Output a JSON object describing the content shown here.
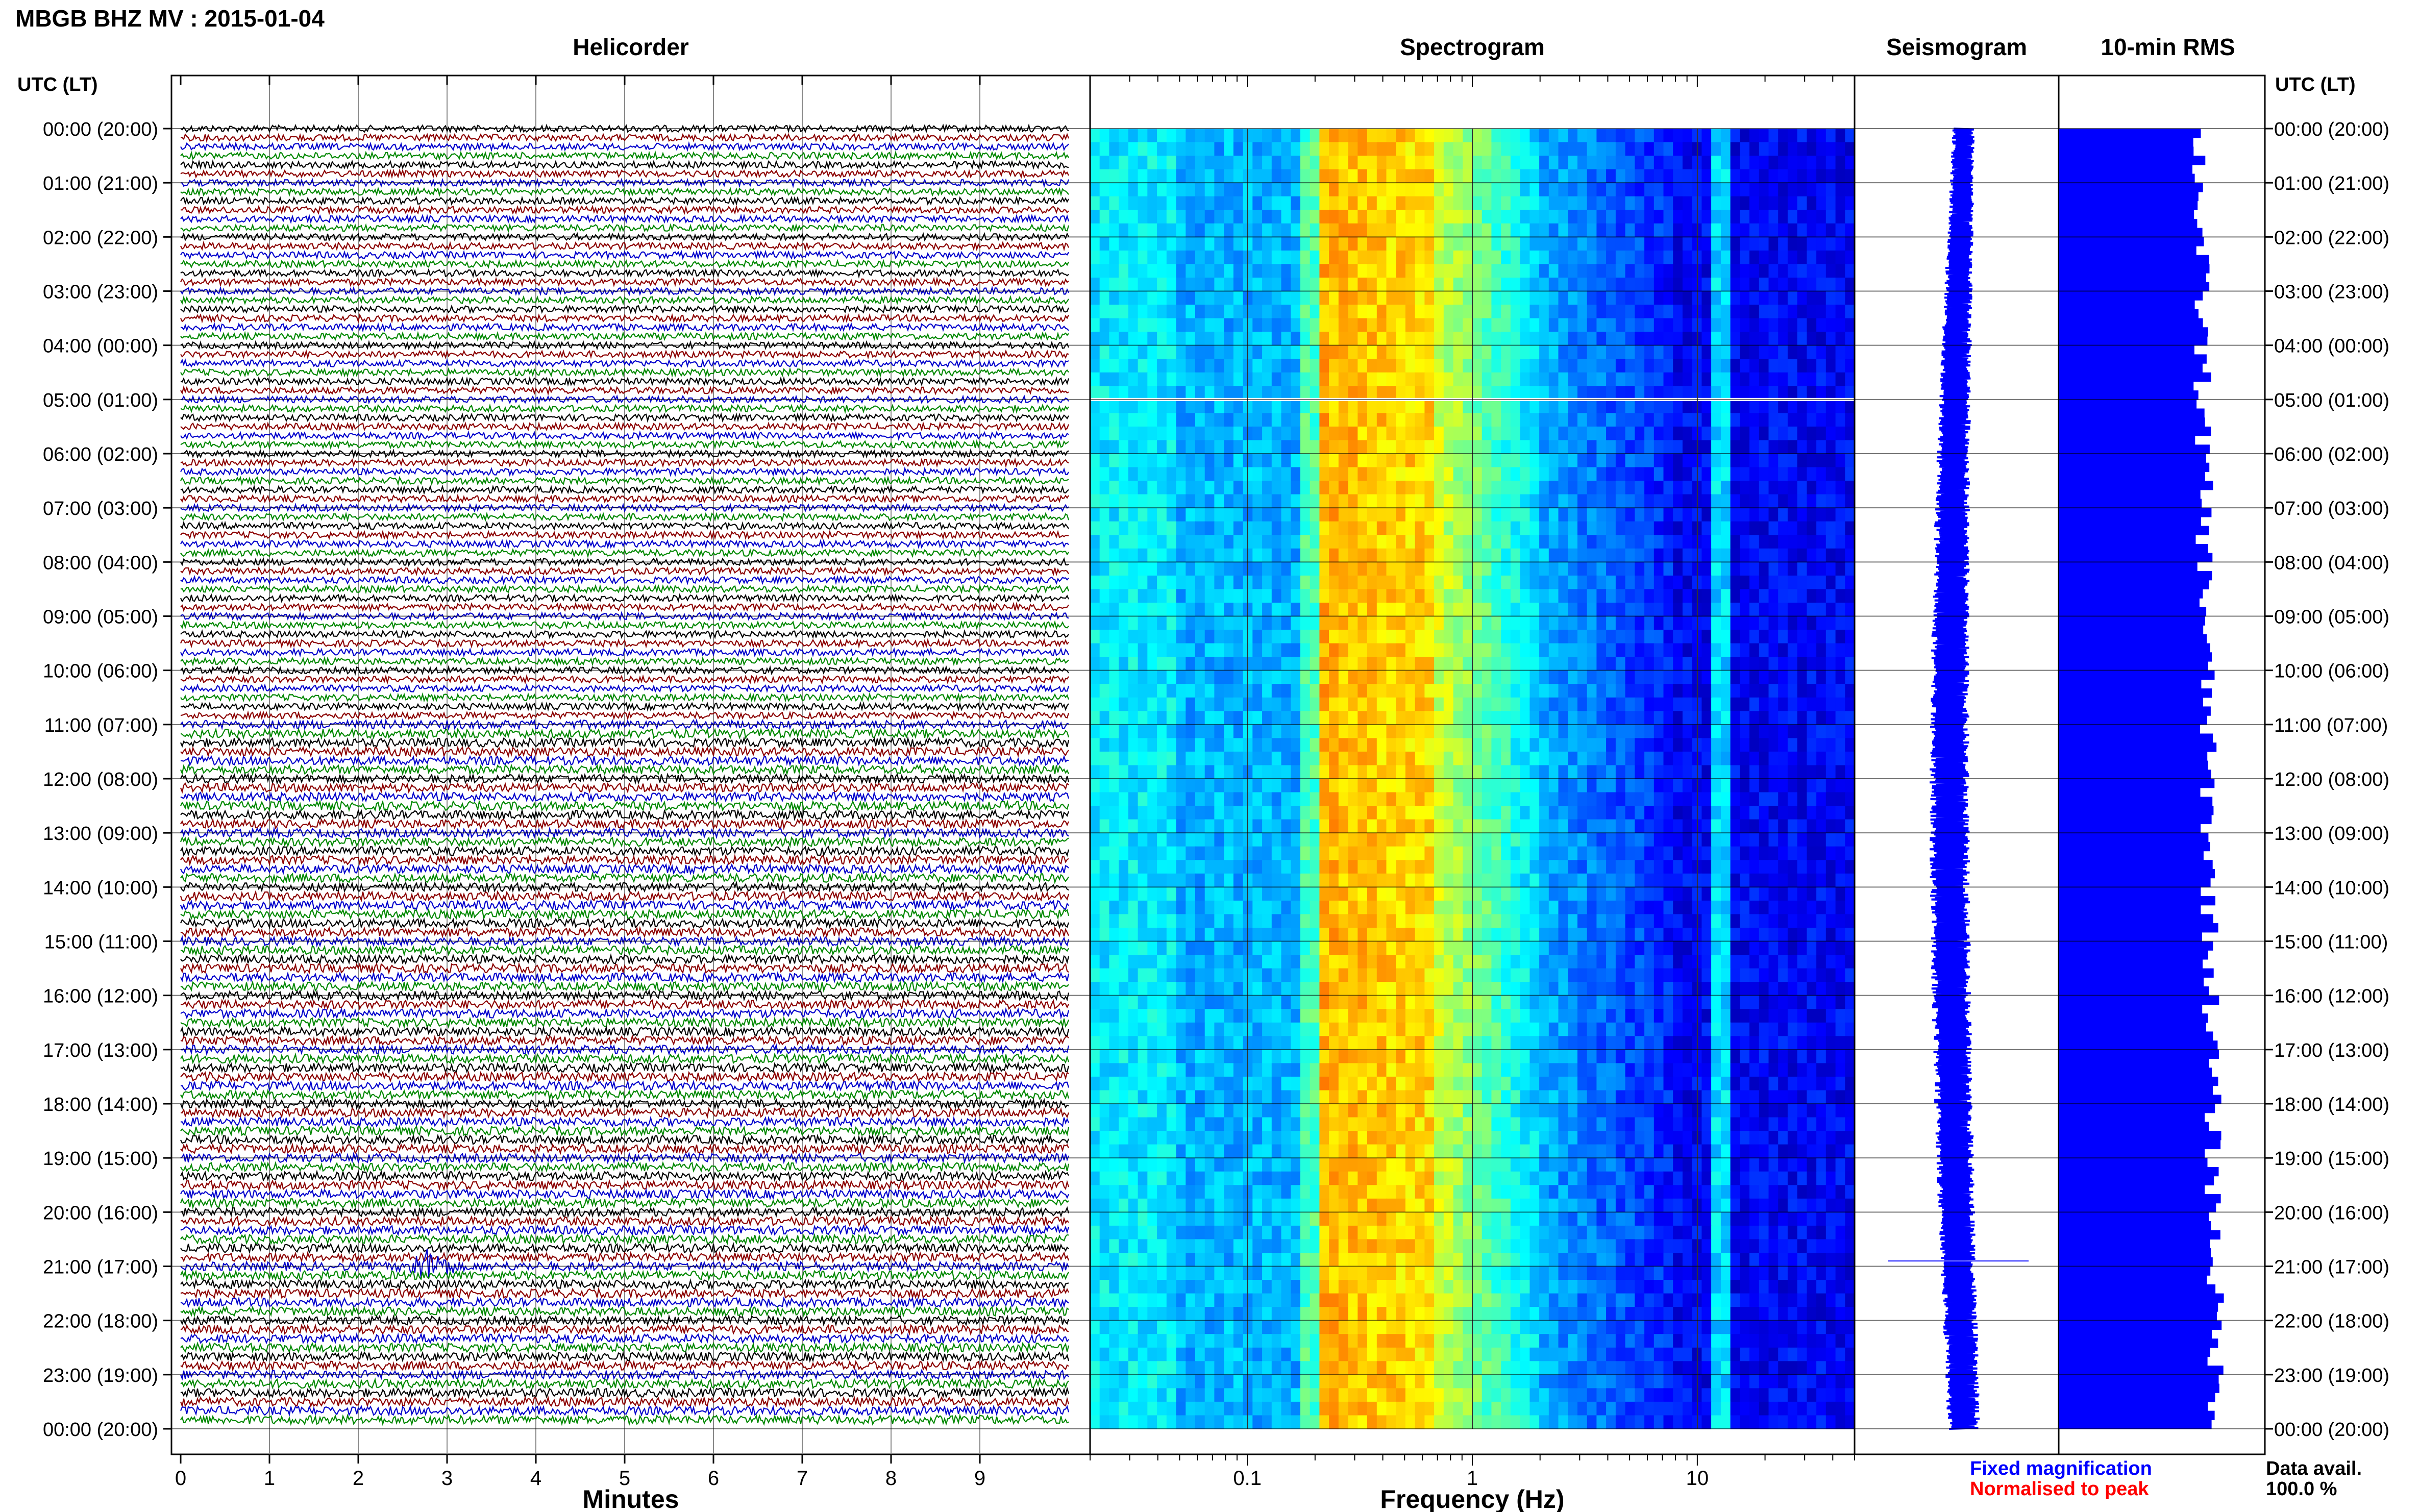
{
  "station_title": "MBGB BHZ MV : 2015-01-04",
  "panels": {
    "helicorder": "Helicorder",
    "spectrogram": "Spectrogram",
    "seismogram": "Seismogram",
    "rms": "10-min RMS"
  },
  "time_axis_label": "UTC (LT)",
  "time_labels": [
    "00:00 (20:00)",
    "01:00 (21:00)",
    "02:00 (22:00)",
    "03:00 (23:00)",
    "04:00 (00:00)",
    "05:00 (01:00)",
    "06:00 (02:00)",
    "07:00 (03:00)",
    "08:00 (04:00)",
    "09:00 (05:00)",
    "10:00 (06:00)",
    "11:00 (07:00)",
    "12:00 (08:00)",
    "13:00 (09:00)",
    "14:00 (10:00)",
    "15:00 (11:00)",
    "16:00 (12:00)",
    "17:00 (13:00)",
    "18:00 (14:00)",
    "19:00 (15:00)",
    "20:00 (16:00)",
    "21:00 (17:00)",
    "22:00 (18:00)",
    "23:00 (19:00)",
    "00:00 (20:00)"
  ],
  "colors": {
    "trace_cycle": [
      "#000000",
      "#8b0000",
      "#0000cc",
      "#008800"
    ],
    "seismogram": "#0000ff",
    "rms": "#0000ff",
    "legend_fixed": "#0000ff",
    "legend_norm": "#ff0000"
  },
  "legend": {
    "fixed": "Fixed magnification",
    "normalised": "Normalised to peak"
  },
  "data_avail": {
    "label": "Data avail.",
    "value": "100.0 %"
  },
  "chart_data": [
    {
      "type": "line",
      "name": "helicorder",
      "title": "Helicorder",
      "xlabel": "Minutes",
      "x_ticks": [
        "0",
        "1",
        "2",
        "3",
        "4",
        "5",
        "6",
        "7",
        "8",
        "9"
      ],
      "xlim": [
        0,
        10
      ],
      "rows_per_hour": 6,
      "hours": 24,
      "events": [
        {
          "time_utc": "21:00",
          "minute": 2.8
        }
      ]
    },
    {
      "type": "heatmap",
      "name": "spectrogram",
      "title": "Spectrogram",
      "xlabel": "Frequency (Hz)",
      "x_scale": "log",
      "xlim": [
        0.02,
        50
      ],
      "x_ticks": [
        "0.1",
        "1",
        "10"
      ],
      "colormap": "jet"
    },
    {
      "type": "line",
      "name": "seismogram",
      "title": "Seismogram"
    },
    {
      "type": "bar",
      "name": "rms",
      "title": "10-min RMS",
      "orientation": "horizontal",
      "bins": 144
    }
  ]
}
